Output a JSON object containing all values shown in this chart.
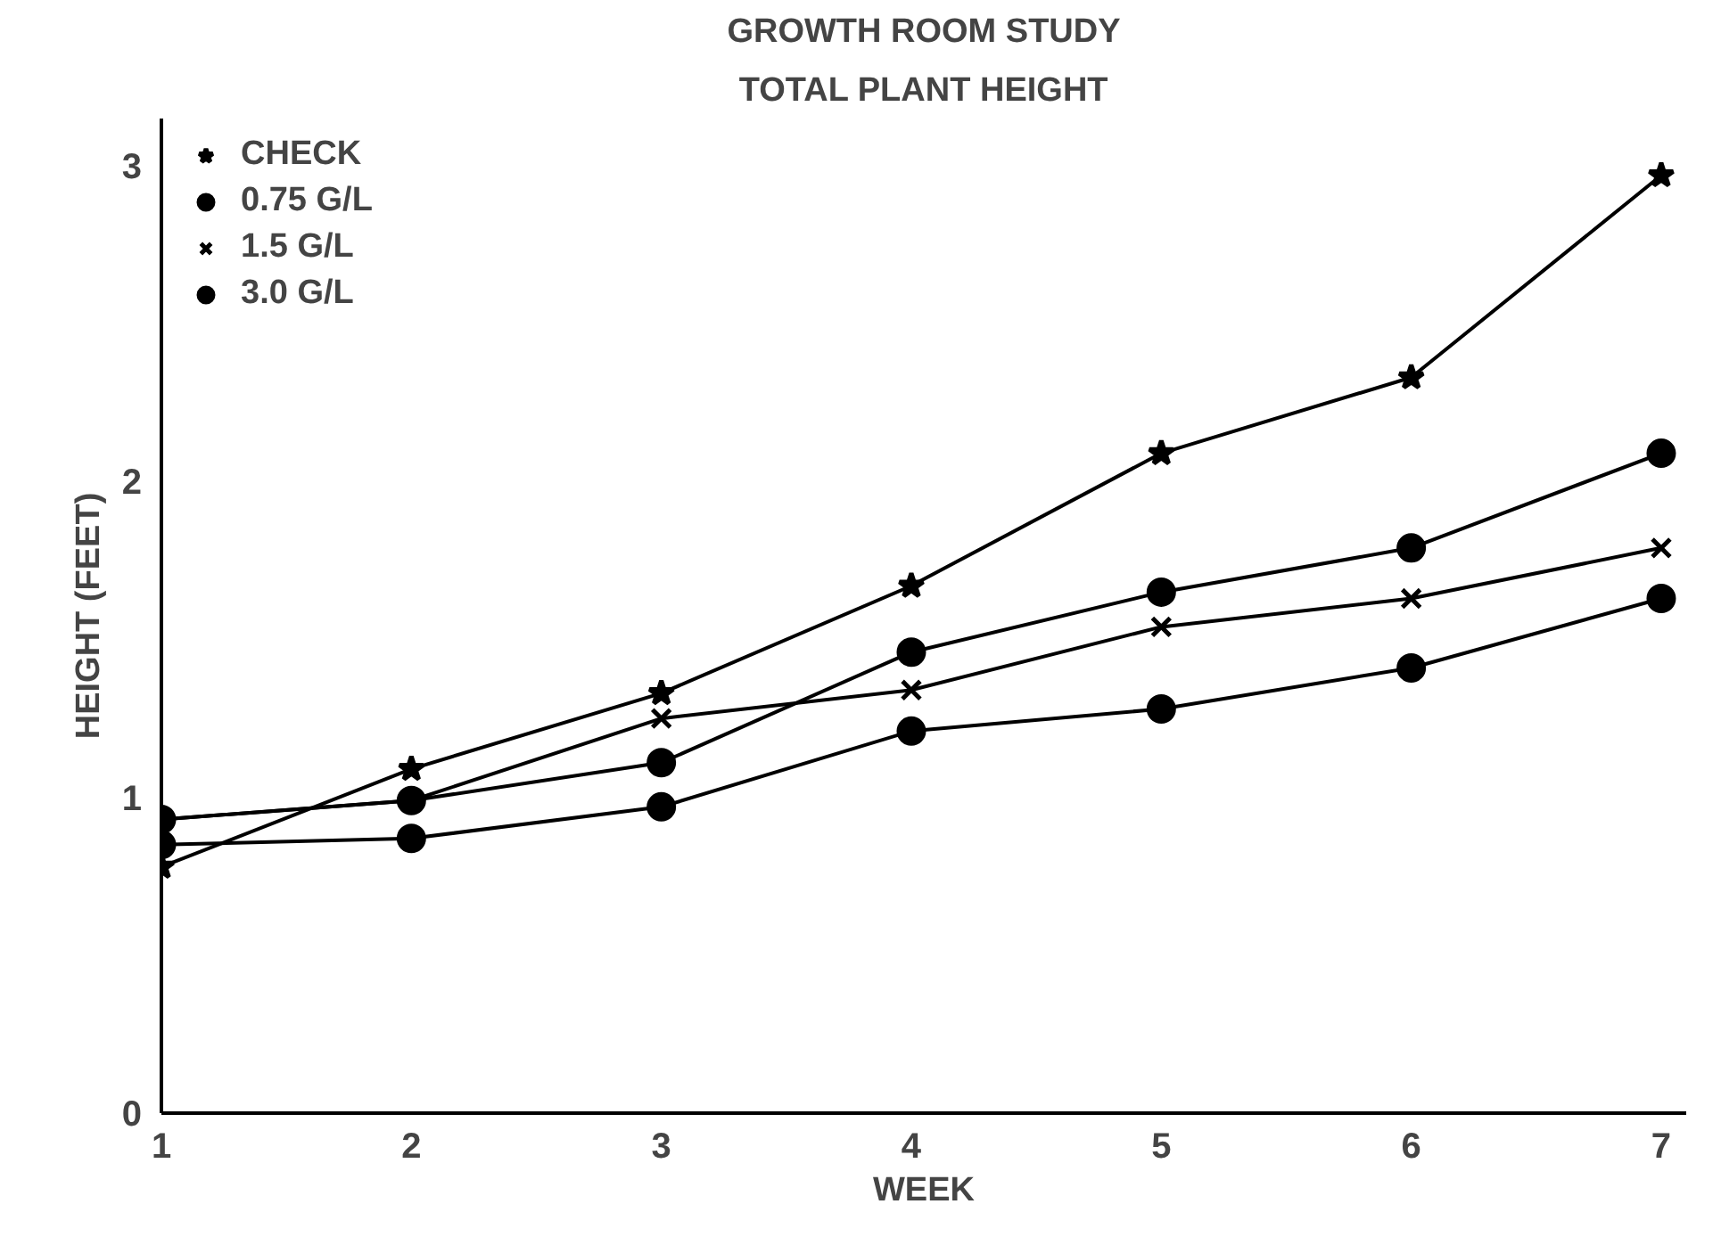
{
  "chart_data": {
    "type": "line",
    "title": "GROWTH ROOM STUDY",
    "subtitle": "TOTAL PLANT HEIGHT",
    "xlabel": "WEEK",
    "ylabel": "HEIGHT (FEET)",
    "x": [
      1,
      2,
      3,
      4,
      5,
      6,
      7
    ],
    "series": [
      {
        "name": "CHECK",
        "color": "#000000",
        "marker": "star",
        "values": [
          0.78,
          1.09,
          1.33,
          1.67,
          2.09,
          2.33,
          2.97
        ]
      },
      {
        "name": "0.75 G/L",
        "color": "#000000",
        "marker": "circle",
        "values": [
          0.93,
          0.99,
          1.11,
          1.46,
          1.65,
          1.79,
          2.09
        ]
      },
      {
        "name": "1.5 G/L",
        "color": "#000000",
        "marker": "cross",
        "values": [
          0.93,
          0.99,
          1.25,
          1.34,
          1.54,
          1.63,
          1.79
        ]
      },
      {
        "name": "3.0 G/L",
        "color": "#000000",
        "marker": "circle",
        "values": [
          0.85,
          0.87,
          0.97,
          1.21,
          1.28,
          1.41,
          1.63
        ]
      }
    ],
    "xlim": [
      1,
      7.1
    ],
    "ylim": [
      0,
      3.15
    ],
    "xticks": [
      1,
      2,
      3,
      4,
      5,
      6,
      7
    ],
    "yticks": [
      0,
      1,
      2,
      3
    ],
    "grid": false,
    "legend": "top left",
    "line_style": "solid"
  }
}
